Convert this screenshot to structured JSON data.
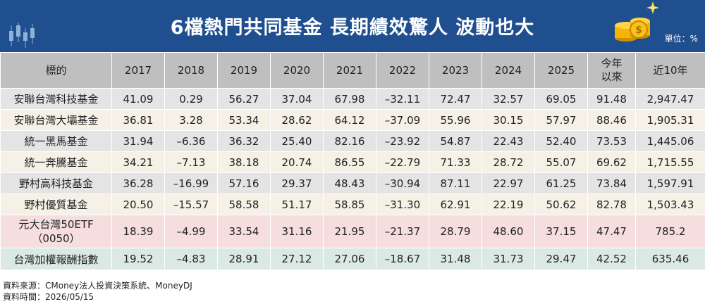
{
  "header": {
    "title": "6檔熱門共同基金 長期績效驚人 波動也大",
    "unit": "單位：%"
  },
  "table": {
    "columns": [
      "標的",
      "2017",
      "2018",
      "2019",
      "2020",
      "2021",
      "2022",
      "2023",
      "2024",
      "2025",
      "今年以來",
      "近10年"
    ],
    "col_ytd_line1": "今年",
    "col_ytd_line2": "以來",
    "rows": [
      {
        "name": "安聯台灣科技基金",
        "values": [
          "41.09",
          "0.29",
          "56.27",
          "37.04",
          "67.98",
          "–32.11",
          "72.47",
          "32.57",
          "69.05",
          "91.48",
          "2,947.47"
        ]
      },
      {
        "name": "安聯台灣大壩基金",
        "values": [
          "36.81",
          "3.28",
          "53.34",
          "28.62",
          "64.12",
          "–37.09",
          "55.96",
          "30.15",
          "57.97",
          "88.46",
          "1,905.31"
        ]
      },
      {
        "name": "統一黑馬基金",
        "values": [
          "31.94",
          "–6.36",
          "36.32",
          "25.40",
          "82.16",
          "–23.92",
          "54.87",
          "22.43",
          "52.40",
          "73.53",
          "1,445.06"
        ]
      },
      {
        "name": "統一奔騰基金",
        "values": [
          "34.21",
          "–7.13",
          "38.18",
          "20.74",
          "86.55",
          "–22.79",
          "71.33",
          "28.72",
          "55.07",
          "69.62",
          "1,715.55"
        ]
      },
      {
        "name": "野村高科技基金",
        "values": [
          "36.28",
          "–16.99",
          "57.16",
          "29.37",
          "48.43",
          "–30.94",
          "87.11",
          "22.97",
          "61.25",
          "73.84",
          "1,597.91"
        ]
      },
      {
        "name": "野村優質基金",
        "values": [
          "20.50",
          "–15.57",
          "58.58",
          "51.17",
          "58.85",
          "–31.30",
          "62.91",
          "22.19",
          "50.62",
          "82.78",
          "1,503.43"
        ]
      },
      {
        "name_line1": "元大台灣50ETF",
        "name_line2": "（0050）",
        "values": [
          "18.39",
          "–4.99",
          "33.54",
          "31.16",
          "21.95",
          "–21.37",
          "28.79",
          "48.60",
          "37.15",
          "47.47",
          "785.2"
        ]
      },
      {
        "name": "台灣加權報酬指數",
        "values": [
          "19.52",
          "–4.83",
          "28.91",
          "27.12",
          "27.06",
          "–18.67",
          "31.48",
          "31.73",
          "29.47",
          "42.52",
          "635.46"
        ]
      }
    ]
  },
  "footer": {
    "source": "資料來源：CMoney法人投資決策系統、MoneyDJ",
    "date": "資料時間：2026/05/15"
  },
  "colors": {
    "header_bg": "#1f4f8f",
    "column_header_bg": "#bfbfbf",
    "row_gray": "#e4e4e4",
    "row_cream": "#f5f1e6",
    "row_pink": "#f6dede",
    "row_green": "#dbe9e4",
    "coin_gold": "#f5b400"
  },
  "icons": [
    "candlestick-chart-icon",
    "coin-stack-icon",
    "sparkle-icon"
  ]
}
